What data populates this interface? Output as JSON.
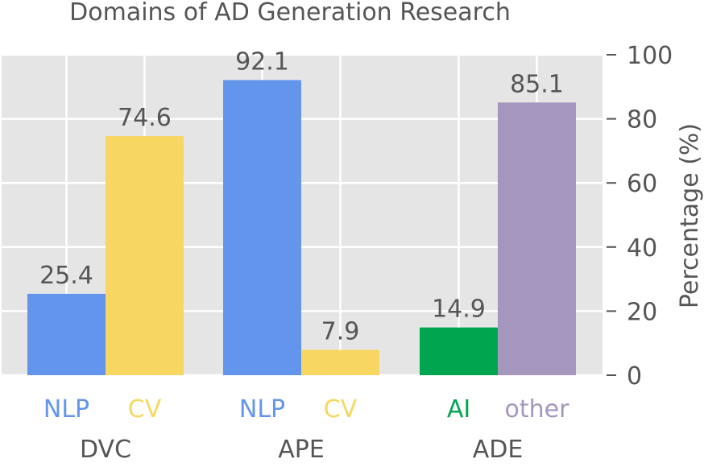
{
  "chart_data": {
    "type": "bar",
    "title": "Domains of AD Generation Research",
    "ylabel": "Percentage (%)",
    "xlabel": "",
    "ylim": [
      0,
      100
    ],
    "yticks": [
      0,
      20,
      40,
      60,
      80,
      100
    ],
    "grid": true,
    "y_axis_side": "right",
    "groups": [
      {
        "name": "DVC",
        "bars": [
          {
            "label": "NLP",
            "value": 25.4,
            "value_label": "25.4",
            "color": "#6495ED"
          },
          {
            "label": "CV",
            "value": 74.6,
            "value_label": "74.6",
            "color": "#F7D761"
          }
        ]
      },
      {
        "name": "APE",
        "bars": [
          {
            "label": "NLP",
            "value": 92.1,
            "value_label": "92.1",
            "color": "#6495ED"
          },
          {
            "label": "CV",
            "value": 7.9,
            "value_label": "7.9",
            "color": "#F7D761"
          }
        ]
      },
      {
        "name": "ADE",
        "bars": [
          {
            "label": "AI",
            "value": 14.9,
            "value_label": "14.9",
            "color": "#00A550"
          },
          {
            "label": "other",
            "value": 85.1,
            "value_label": "85.1",
            "color": "#A596BE"
          }
        ]
      }
    ],
    "colors": {
      "background": "#E5E5E5",
      "grid": "#FFFFFF",
      "text": "#555555"
    }
  }
}
